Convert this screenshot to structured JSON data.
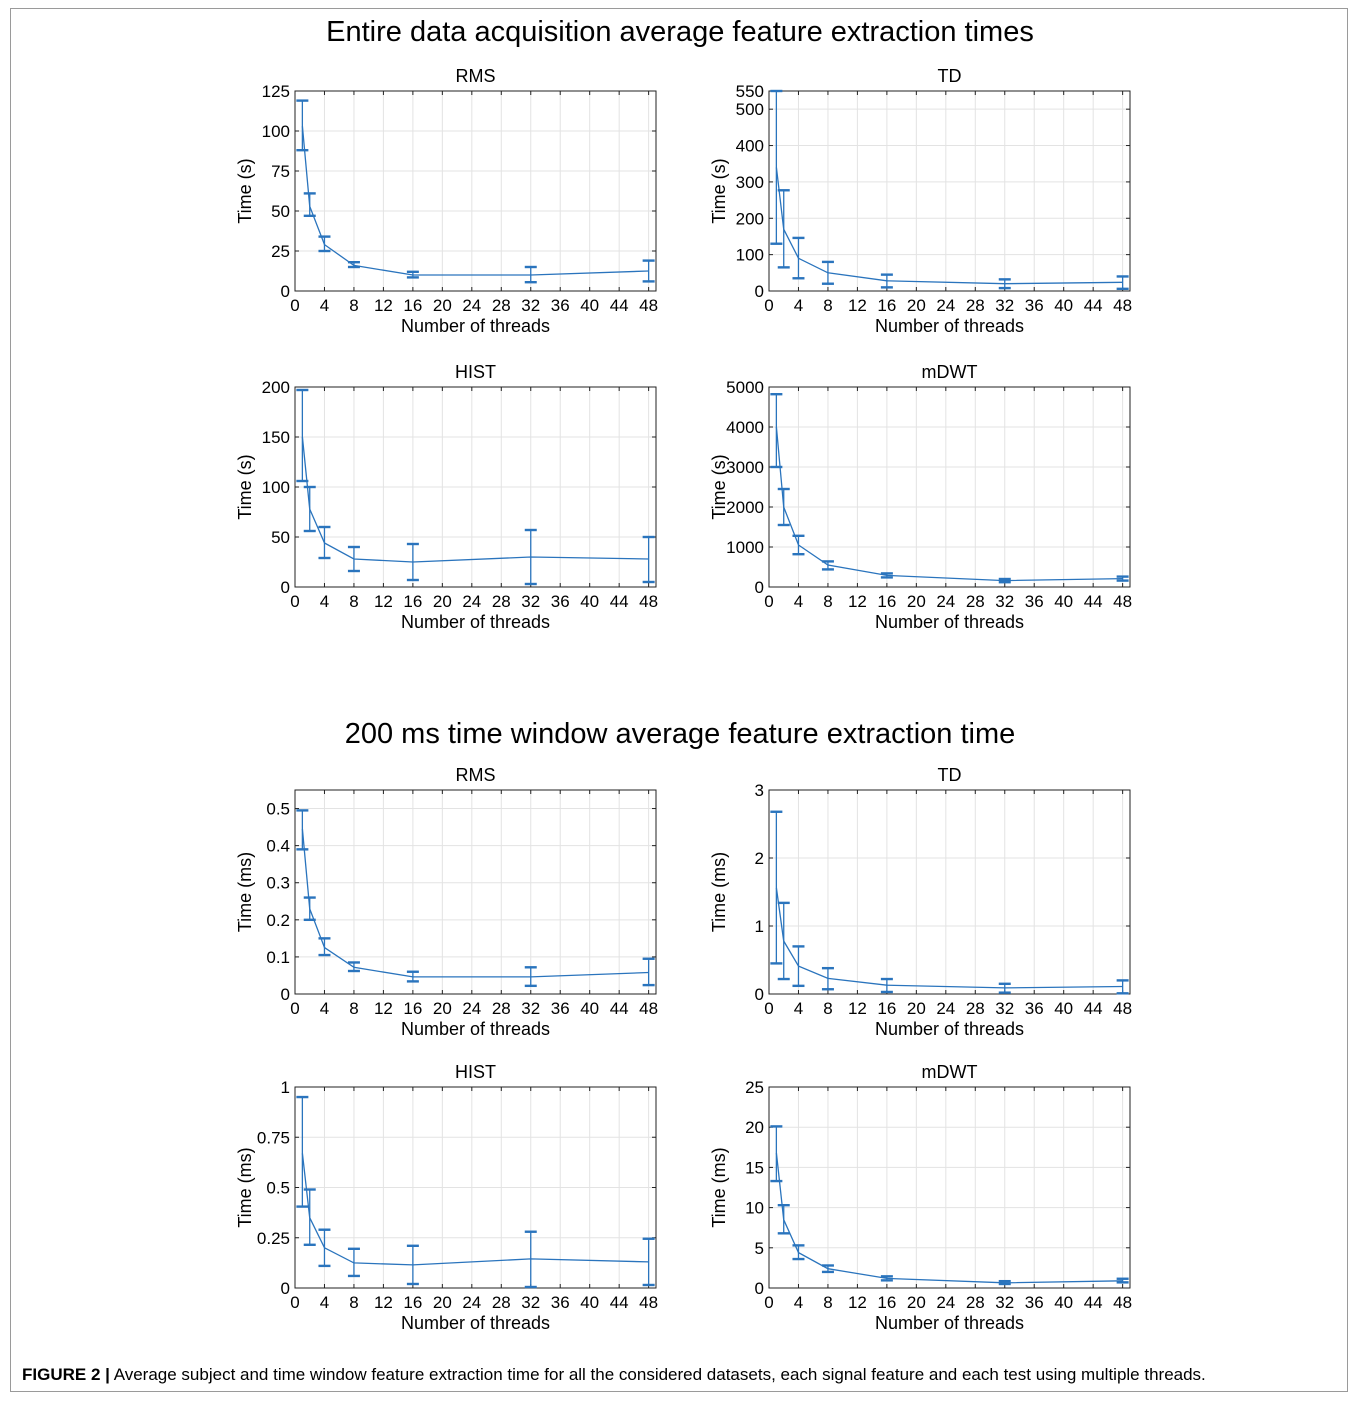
{
  "sections": [
    {
      "title": "Entire data acquisition average feature extraction times"
    },
    {
      "title": "200 ms time window average feature extraction time"
    }
  ],
  "caption": {
    "lead": "FIGURE 2 |",
    "text": "Average subject and time window feature extraction time for all the considered datasets, each signal feature and each test using multiple threads."
  },
  "colors": {
    "series": "#2a74bd",
    "grid": "#e3e3e3",
    "axis": "#222222"
  },
  "chart_data": [
    {
      "type": "line",
      "title": "RMS",
      "xlabel": "Number of threads",
      "ylabel": "Time (s)",
      "xlim": [
        0,
        49
      ],
      "ylim": [
        0,
        125
      ],
      "xticks": [
        0,
        4,
        8,
        12,
        16,
        20,
        24,
        28,
        32,
        36,
        40,
        44,
        48
      ],
      "yticks": [
        0,
        25,
        50,
        75,
        100,
        125
      ],
      "grid": true,
      "x": [
        1,
        2,
        4,
        8,
        16,
        32,
        48
      ],
      "y": [
        103,
        53,
        29,
        16,
        10,
        10,
        12.5
      ],
      "err_low": [
        88,
        47,
        25,
        15,
        8.5,
        5.5,
        6
      ],
      "err_high": [
        119,
        61,
        34,
        18,
        12,
        15,
        19
      ]
    },
    {
      "type": "line",
      "title": "TD",
      "xlabel": "Number of threads",
      "ylabel": "Time (s)",
      "xlim": [
        0,
        49
      ],
      "ylim": [
        0,
        550
      ],
      "xticks": [
        0,
        4,
        8,
        12,
        16,
        20,
        24,
        28,
        32,
        36,
        40,
        44,
        48
      ],
      "yticks": [
        0,
        100,
        200,
        300,
        400,
        500,
        550
      ],
      "grid": true,
      "x": [
        1,
        2,
        4,
        8,
        16,
        32,
        48
      ],
      "y": [
        340,
        170,
        90,
        50,
        28,
        20,
        24
      ],
      "err_low": [
        130,
        65,
        35,
        20,
        10,
        8,
        6
      ],
      "err_high": [
        550,
        277,
        146,
        80,
        45,
        32,
        40
      ]
    },
    {
      "type": "line",
      "title": "HIST",
      "xlabel": "Number of threads",
      "ylabel": "Time (s)",
      "xlim": [
        0,
        49
      ],
      "ylim": [
        0,
        200
      ],
      "xticks": [
        0,
        4,
        8,
        12,
        16,
        20,
        24,
        28,
        32,
        36,
        40,
        44,
        48
      ],
      "yticks": [
        0,
        50,
        100,
        150,
        200
      ],
      "grid": true,
      "x": [
        1,
        2,
        4,
        8,
        16,
        32,
        48
      ],
      "y": [
        150,
        78,
        44,
        28,
        25,
        30,
        28
      ],
      "err_low": [
        106,
        56,
        29,
        16,
        7,
        3,
        5
      ],
      "err_high": [
        197,
        100,
        60,
        40,
        43,
        57,
        50
      ]
    },
    {
      "type": "line",
      "title": "mDWT",
      "xlabel": "Number of threads",
      "ylabel": "Time (s)",
      "xlim": [
        0,
        49
      ],
      "ylim": [
        0,
        5000
      ],
      "xticks": [
        0,
        4,
        8,
        12,
        16,
        20,
        24,
        28,
        32,
        36,
        40,
        44,
        48
      ],
      "yticks": [
        0,
        1000,
        2000,
        3000,
        4000,
        5000
      ],
      "grid": true,
      "x": [
        1,
        2,
        4,
        8,
        16,
        32,
        48
      ],
      "y": [
        4000,
        2000,
        1050,
        550,
        290,
        160,
        210
      ],
      "err_low": [
        3000,
        1550,
        820,
        440,
        240,
        120,
        160
      ],
      "err_high": [
        4820,
        2450,
        1280,
        640,
        340,
        200,
        260
      ]
    },
    {
      "type": "line",
      "title": "RMS",
      "xlabel": "Number of threads",
      "ylabel": "Time (ms)",
      "xlim": [
        0,
        49
      ],
      "ylim": [
        0,
        0.55
      ],
      "xticks": [
        0,
        4,
        8,
        12,
        16,
        20,
        24,
        28,
        32,
        36,
        40,
        44,
        48
      ],
      "yticks": [
        0,
        0.1,
        0.2,
        0.3,
        0.4,
        0.5
      ],
      "grid": true,
      "x": [
        1,
        2,
        4,
        8,
        16,
        32,
        48
      ],
      "y": [
        0.445,
        0.23,
        0.125,
        0.072,
        0.046,
        0.046,
        0.058
      ],
      "err_low": [
        0.39,
        0.2,
        0.105,
        0.062,
        0.034,
        0.022,
        0.024
      ],
      "err_high": [
        0.495,
        0.26,
        0.15,
        0.085,
        0.06,
        0.072,
        0.095
      ]
    },
    {
      "type": "line",
      "title": "TD",
      "xlabel": "Number of threads",
      "ylabel": "Time (ms)",
      "xlim": [
        0,
        49
      ],
      "ylim": [
        0,
        3
      ],
      "xticks": [
        0,
        4,
        8,
        12,
        16,
        20,
        24,
        28,
        32,
        36,
        40,
        44,
        48
      ],
      "yticks": [
        0,
        1,
        2,
        3
      ],
      "grid": true,
      "x": [
        1,
        2,
        4,
        8,
        16,
        32,
        48
      ],
      "y": [
        1.56,
        0.78,
        0.41,
        0.23,
        0.13,
        0.09,
        0.11
      ],
      "err_low": [
        0.45,
        0.22,
        0.12,
        0.07,
        0.03,
        0.02,
        0.01
      ],
      "err_high": [
        2.68,
        1.34,
        0.7,
        0.38,
        0.22,
        0.15,
        0.2
      ]
    },
    {
      "type": "line",
      "title": "HIST",
      "xlabel": "Number of threads",
      "ylabel": "Time (ms)",
      "xlim": [
        0,
        49
      ],
      "ylim": [
        0,
        1
      ],
      "xticks": [
        0,
        4,
        8,
        12,
        16,
        20,
        24,
        28,
        32,
        36,
        40,
        44,
        48
      ],
      "yticks": [
        0,
        0.25,
        0.5,
        0.75,
        1
      ],
      "grid": true,
      "x": [
        1,
        2,
        4,
        8,
        16,
        32,
        48
      ],
      "y": [
        0.67,
        0.35,
        0.2,
        0.125,
        0.115,
        0.145,
        0.13
      ],
      "err_low": [
        0.405,
        0.215,
        0.11,
        0.06,
        0.02,
        0.005,
        0.015
      ],
      "err_high": [
        0.95,
        0.49,
        0.29,
        0.195,
        0.21,
        0.28,
        0.245
      ]
    },
    {
      "type": "line",
      "title": "mDWT",
      "xlabel": "Number of threads",
      "ylabel": "Time (ms)",
      "xlim": [
        0,
        49
      ],
      "ylim": [
        0,
        25
      ],
      "xticks": [
        0,
        4,
        8,
        12,
        16,
        20,
        24,
        28,
        32,
        36,
        40,
        44,
        48
      ],
      "yticks": [
        0,
        5,
        10,
        15,
        20,
        25
      ],
      "grid": true,
      "x": [
        1,
        2,
        4,
        8,
        16,
        32,
        48
      ],
      "y": [
        16.8,
        8.5,
        4.4,
        2.4,
        1.2,
        0.65,
        0.9
      ],
      "err_low": [
        13.3,
        6.8,
        3.6,
        2,
        0.95,
        0.5,
        0.7
      ],
      "err_high": [
        20.1,
        10.3,
        5.3,
        2.8,
        1.45,
        0.85,
        1.15
      ]
    }
  ]
}
